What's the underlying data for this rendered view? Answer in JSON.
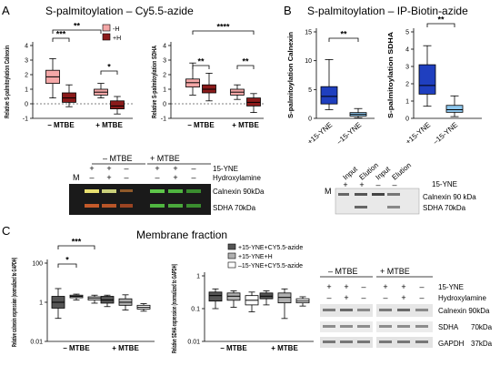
{
  "panel_a": {
    "letter": "A",
    "title": "S-palmitoylation – Cy5.5-azide",
    "legend": [
      "-H",
      "+H"
    ],
    "colors": {
      "minus_h": "#f4a7a7",
      "plus_h": "#8b1a1a"
    },
    "blot": {
      "group_left": "– MTBE",
      "group_right": "+ MTBE",
      "row_labels": [
        "15-YNE",
        "Hydroxylamine"
      ],
      "marker": "M",
      "row1_marks": [
        "",
        "+",
        "+",
        "–",
        "+",
        "+",
        "–"
      ],
      "row2_marks": [
        "",
        "–",
        "+",
        "–",
        "–",
        "+",
        "–"
      ],
      "band_labels": [
        "Calnexin 90kDa",
        "SDHA 70kDa"
      ]
    }
  },
  "panel_b": {
    "letter": "B",
    "title": "S-palmitoylation – IP-Biotin-azide",
    "colors": {
      "plus_yne": "#1f3fbf",
      "minus_yne": "#8ec8ef"
    },
    "blot": {
      "marker": "M",
      "headers": [
        "Input",
        "Elution",
        "Input",
        "Elution"
      ],
      "row_label": "15-YNE",
      "marks": [
        "+",
        "+",
        "–",
        "–"
      ],
      "band_labels": [
        "Calnexin 90 kDa",
        "SDHA 70kDa"
      ]
    }
  },
  "panel_c": {
    "letter": "C",
    "title": "Membrane fraction",
    "legend": [
      "+15-YNE+CY5.5-azide",
      "+15-YNE+H",
      "–15-YNE+CY5.5-azide"
    ],
    "colors": {
      "s1": "#555555",
      "s2": "#b0b0b0",
      "s3": "#ffffff"
    },
    "blot": {
      "group_left": "– MTBE",
      "group_right": "+ MTBE",
      "row_labels": [
        "15-YNE",
        "Hydroxylamine"
      ],
      "row1_marks": [
        "+",
        "+",
        "–",
        "+",
        "+",
        "–"
      ],
      "row2_marks": [
        "–",
        "+",
        "–",
        "–",
        "+",
        "–"
      ],
      "band_labels": [
        "Calnexin 90kDa",
        "SDHA",
        "GAPDH"
      ],
      "band_sizes": [
        "",
        "70kDa",
        "37kDa"
      ]
    }
  },
  "chart_data": [
    {
      "id": "a-calnexin",
      "type": "box",
      "ylabel": "Relative S-palmitoylation Calnexin",
      "ylim": [
        -1,
        4
      ],
      "yticks": [
        -1,
        0,
        1,
        2,
        3,
        4
      ],
      "categories": [
        "– MTBE",
        "+ MTBE"
      ],
      "series": [
        {
          "name": "-H",
          "boxes": [
            {
              "min": 0.4,
              "q1": 1.4,
              "median": 1.85,
              "q3": 2.3,
              "max": 3.1
            },
            {
              "min": 0.4,
              "q1": 0.6,
              "median": 0.8,
              "q3": 1.0,
              "max": 1.4
            }
          ]
        },
        {
          "name": "+H",
          "boxes": [
            {
              "min": -0.2,
              "q1": 0.1,
              "median": 0.4,
              "q3": 0.75,
              "max": 1.3
            },
            {
              "min": -0.7,
              "q1": -0.35,
              "median": -0.15,
              "q3": 0.2,
              "max": 0.5
            }
          ]
        }
      ],
      "significance": [
        "***",
        "**",
        "*"
      ]
    },
    {
      "id": "a-sdha",
      "type": "box",
      "ylabel": "Relative S-palmitoylation SDHA",
      "ylim": [
        -1,
        4
      ],
      "yticks": [
        -1,
        0,
        1,
        2,
        3,
        4
      ],
      "categories": [
        "– MTBE",
        "+ MTBE"
      ],
      "series": [
        {
          "name": "-H",
          "boxes": [
            {
              "min": 0.6,
              "q1": 1.15,
              "median": 1.45,
              "q3": 1.7,
              "max": 2.8
            },
            {
              "min": 0.3,
              "q1": 0.6,
              "median": 0.8,
              "q3": 1.0,
              "max": 1.3
            }
          ]
        },
        {
          "name": "+H",
          "boxes": [
            {
              "min": 0.2,
              "q1": 0.75,
              "median": 1.0,
              "q3": 1.3,
              "max": 2.1
            },
            {
              "min": -0.6,
              "q1": -0.15,
              "median": 0.1,
              "q3": 0.4,
              "max": 0.7
            }
          ]
        }
      ],
      "significance": [
        "**",
        "****",
        "**"
      ]
    },
    {
      "id": "b-calnexin",
      "type": "box",
      "ylabel": "S-palmitoylation Calnexin",
      "ylim": [
        0,
        15
      ],
      "yticks": [
        0,
        5,
        10,
        15
      ],
      "categories": [
        "+15-YNE",
        "–15-YNE"
      ],
      "boxes": [
        {
          "min": 1.5,
          "q1": 2.5,
          "median": 3.8,
          "q3": 5.5,
          "max": 10.2
        },
        {
          "min": 0.1,
          "q1": 0.4,
          "median": 0.7,
          "q3": 1.0,
          "max": 1.7
        }
      ],
      "significance": [
        "**"
      ]
    },
    {
      "id": "b-sdha",
      "type": "box",
      "ylabel": "S-palmitoylation SDHA",
      "ylim": [
        0,
        5
      ],
      "yticks": [
        0,
        1,
        2,
        3,
        4,
        5
      ],
      "categories": [
        "+15-YNE",
        "–15-YNE"
      ],
      "boxes": [
        {
          "min": 0.7,
          "q1": 1.4,
          "median": 1.9,
          "q3": 3.1,
          "max": 4.2
        },
        {
          "min": 0.1,
          "q1": 0.35,
          "median": 0.5,
          "q3": 0.75,
          "max": 1.3
        }
      ],
      "significance": [
        "**"
      ]
    },
    {
      "id": "c-calnexin",
      "type": "box",
      "log_scale": true,
      "ylabel": "Relative calnexin expression (normalized to GAPDH)",
      "ylim": [
        0.01,
        100
      ],
      "yticks": [
        0.01,
        1,
        100
      ],
      "ytick_labels": [
        "0.01",
        "1",
        "100"
      ],
      "categories": [
        "– MTBE",
        "+ MTBE"
      ],
      "series": [
        {
          "name": "+15-YNE+CY5.5-azide",
          "boxes": [
            {
              "min": 0.15,
              "q1": 0.5,
              "median": 1.0,
              "q3": 2.0,
              "max": 5.0
            },
            {
              "min": 0.6,
              "q1": 0.9,
              "median": 1.3,
              "q3": 2.0,
              "max": 2.3
            }
          ]
        },
        {
          "name": "+15-YNE+H",
          "boxes": [
            {
              "min": 1.3,
              "q1": 1.7,
              "median": 2.0,
              "q3": 2.3,
              "max": 2.6
            },
            {
              "min": 0.4,
              "q1": 0.7,
              "median": 1.0,
              "q3": 1.5,
              "max": 2.4
            }
          ]
        },
        {
          "name": "–15-YNE+CY5.5-azide",
          "boxes": [
            {
              "min": 0.9,
              "q1": 1.3,
              "median": 1.6,
              "q3": 1.9,
              "max": 2.3
            },
            {
              "min": 0.35,
              "q1": 0.45,
              "median": 0.55,
              "q3": 0.7,
              "max": 0.85
            }
          ]
        }
      ],
      "significance": [
        "***",
        "*"
      ]
    },
    {
      "id": "c-sdha",
      "type": "box",
      "log_scale": true,
      "ylabel": "Relative SDHA expression (normalized to GAPDH)",
      "ylim": [
        0.01,
        1
      ],
      "yticks": [
        0.01,
        0.1,
        1
      ],
      "ytick_labels": [
        "0.01",
        "0.1",
        "1"
      ],
      "categories": [
        "– MTBE",
        "+ MTBE"
      ],
      "series": [
        {
          "name": "+15-YNE+CY5.5-azide",
          "boxes": [
            {
              "min": 0.1,
              "q1": 0.17,
              "median": 0.25,
              "q3": 0.32,
              "max": 0.4
            },
            {
              "min": 0.13,
              "q1": 0.2,
              "median": 0.24,
              "q3": 0.3,
              "max": 0.35
            }
          ]
        },
        {
          "name": "+15-YNE+H",
          "boxes": [
            {
              "min": 0.11,
              "q1": 0.18,
              "median": 0.24,
              "q3": 0.3,
              "max": 0.35
            },
            {
              "min": 0.05,
              "q1": 0.15,
              "median": 0.22,
              "q3": 0.3,
              "max": 0.4
            }
          ]
        },
        {
          "name": "–15-YNE+CY5.5-azide",
          "boxes": [
            {
              "min": 0.08,
              "q1": 0.13,
              "median": 0.18,
              "q3": 0.25,
              "max": 0.32
            },
            {
              "min": 0.12,
              "q1": 0.15,
              "median": 0.17,
              "q3": 0.2,
              "max": 0.23
            }
          ]
        }
      ]
    }
  ]
}
